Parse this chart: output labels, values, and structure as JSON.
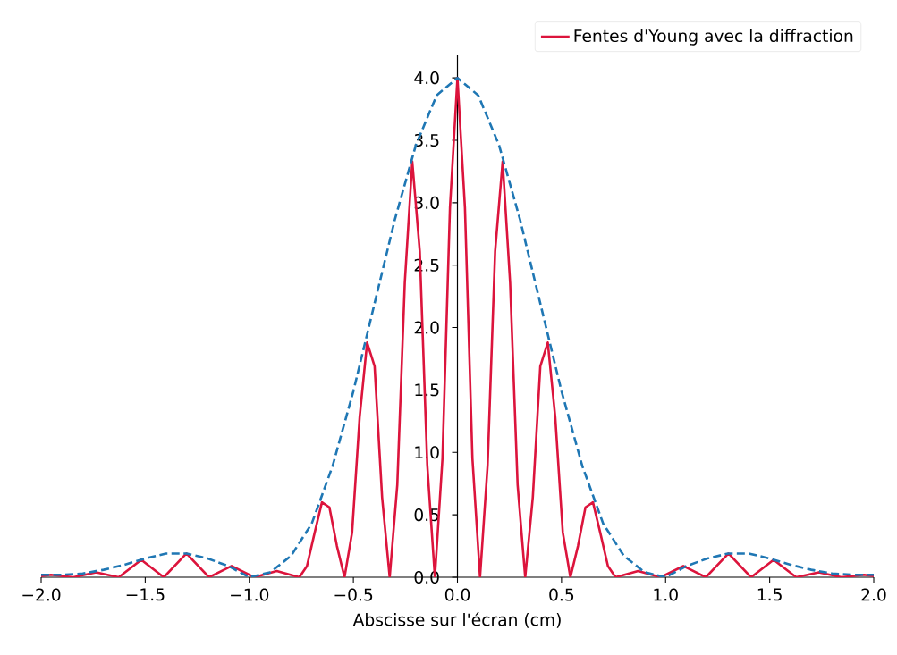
{
  "chart_data": {
    "type": "line",
    "xlabel": "Abscisse sur l'écran (cm)",
    "xlim": [
      -2.0,
      2.0
    ],
    "ylim": [
      0,
      4.18
    ],
    "xticks": [
      {
        "value": -2.0,
        "label": "−2.0"
      },
      {
        "value": -1.5,
        "label": "−1.5"
      },
      {
        "value": -1.0,
        "label": "−1.0"
      },
      {
        "value": -0.5,
        "label": "−0.5"
      },
      {
        "value": 0.0,
        "label": "0.0"
      },
      {
        "value": 0.5,
        "label": "0.5"
      },
      {
        "value": 1.0,
        "label": "1.0"
      },
      {
        "value": 1.5,
        "label": "1.5"
      },
      {
        "value": 2.0,
        "label": "2.0"
      }
    ],
    "yticks": [
      {
        "value": 0.0,
        "label": "0.0"
      },
      {
        "value": 0.5,
        "label": "0.5"
      },
      {
        "value": 1.0,
        "label": "1.0"
      },
      {
        "value": 1.5,
        "label": "1.5"
      },
      {
        "value": 2.0,
        "label": "2.0"
      },
      {
        "value": 2.5,
        "label": "2.5"
      },
      {
        "value": 3.0,
        "label": "3.0"
      },
      {
        "value": 3.5,
        "label": "3.5"
      },
      {
        "value": 4.0,
        "label": "4.0"
      }
    ],
    "legend": "top right",
    "series": [
      {
        "name": "Fentes d'Young avec la diffraction",
        "color": "#dc143c",
        "line_style": "solid",
        "x": [
          -2.0,
          -1.953,
          -1.8445,
          -1.736,
          -1.6275,
          -1.519,
          -1.4105,
          -1.302,
          -1.1935,
          -1.085,
          -0.9765,
          -0.868,
          -0.7595,
          -0.723,
          -0.687,
          -0.651,
          -0.615,
          -0.579,
          -0.5425,
          -0.506,
          -0.47,
          -0.434,
          -0.398,
          -0.362,
          -0.3255,
          -0.289,
          -0.253,
          -0.217,
          -0.181,
          -0.145,
          -0.1085,
          -0.072,
          -0.036,
          0.0,
          0.036,
          0.072,
          0.1085,
          0.145,
          0.181,
          0.217,
          0.253,
          0.289,
          0.3255,
          0.362,
          0.398,
          0.434,
          0.47,
          0.506,
          0.5425,
          0.579,
          0.615,
          0.651,
          0.687,
          0.723,
          0.7595,
          0.868,
          0.9765,
          1.085,
          1.1935,
          1.302,
          1.4105,
          1.519,
          1.6275,
          1.736,
          1.8445,
          1.953,
          2.0
        ],
        "values": [
          0.01,
          0.02,
          0,
          0.04,
          0,
          0.14,
          0,
          0.19,
          0,
          0.09,
          0,
          0.05,
          0,
          0.09,
          0.35,
          0.6,
          0.56,
          0.25,
          0,
          0.36,
          1.28,
          1.88,
          1.69,
          0.64,
          0,
          0.74,
          2.36,
          3.33,
          2.61,
          0.9,
          0,
          0.95,
          2.96,
          4.0,
          2.96,
          0.95,
          0,
          0.9,
          2.61,
          3.33,
          2.36,
          0.74,
          0,
          0.64,
          1.69,
          1.88,
          1.28,
          0.36,
          0,
          0.25,
          0.56,
          0.6,
          0.35,
          0.09,
          0,
          0.05,
          0,
          0.09,
          0,
          0.19,
          0,
          0.14,
          0,
          0.04,
          0,
          0.02,
          0.01
        ]
      },
      {
        "color": "#1f77b4",
        "line_style": "dashed",
        "x": [
          -2.0,
          -1.9,
          -1.8,
          -1.7,
          -1.6,
          -1.5,
          -1.4,
          -1.3,
          -1.2,
          -1.1,
          -1.0,
          -0.9,
          -0.8,
          -0.7,
          -0.6,
          -0.5,
          -0.4,
          -0.3,
          -0.2,
          -0.1,
          0.0,
          0.1,
          0.2,
          0.3,
          0.4,
          0.5,
          0.6,
          0.7,
          0.8,
          0.9,
          1.0,
          1.1,
          1.2,
          1.3,
          1.4,
          1.5,
          1.6,
          1.7,
          1.8,
          1.9,
          2.0
        ],
        "values": [
          0.02,
          0.02,
          0.03,
          0.06,
          0.1,
          0.15,
          0.19,
          0.19,
          0.15,
          0.09,
          0.0,
          0.04,
          0.17,
          0.43,
          0.89,
          1.49,
          2.18,
          2.87,
          3.46,
          3.86,
          4.0,
          3.86,
          3.46,
          2.87,
          2.18,
          1.49,
          0.89,
          0.43,
          0.17,
          0.04,
          0.0,
          0.09,
          0.15,
          0.19,
          0.19,
          0.15,
          0.1,
          0.06,
          0.03,
          0.02,
          0.02
        ]
      }
    ]
  }
}
